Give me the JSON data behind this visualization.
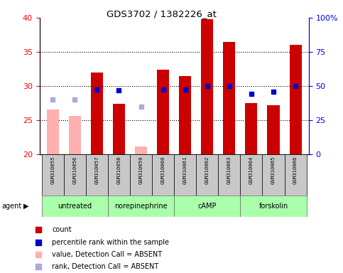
{
  "title": "GDS3702 / 1382226_at",
  "samples": [
    "GSM310055",
    "GSM310056",
    "GSM310057",
    "GSM310058",
    "GSM310059",
    "GSM310060",
    "GSM310061",
    "GSM310062",
    "GSM310063",
    "GSM310064",
    "GSM310065",
    "GSM310066"
  ],
  "bar_values": [
    26.6,
    25.6,
    32.0,
    27.4,
    21.1,
    32.4,
    31.5,
    39.8,
    36.5,
    27.5,
    27.2,
    36.0
  ],
  "bar_absent": [
    true,
    true,
    false,
    false,
    true,
    false,
    false,
    false,
    false,
    false,
    false,
    false
  ],
  "rank_values": [
    28.0,
    28.0,
    29.5,
    29.4,
    27.0,
    29.5,
    29.5,
    30.0,
    30.0,
    28.8,
    29.2,
    30.0
  ],
  "rank_absent": [
    true,
    true,
    false,
    false,
    true,
    false,
    false,
    false,
    false,
    false,
    false,
    false
  ],
  "groups": [
    {
      "label": "untreated",
      "start": 0,
      "end": 3
    },
    {
      "label": "norepinephrine",
      "start": 3,
      "end": 6
    },
    {
      "label": "cAMP",
      "start": 6,
      "end": 9
    },
    {
      "label": "forskolin",
      "start": 9,
      "end": 12
    }
  ],
  "ylim_left": [
    20,
    40
  ],
  "ylim_right": [
    0,
    100
  ],
  "yticks_left": [
    20,
    25,
    30,
    35,
    40
  ],
  "yticks_right": [
    0,
    25,
    50,
    75,
    100
  ],
  "ytick_labels_right": [
    "0",
    "25",
    "50",
    "75",
    "100%"
  ],
  "bar_color_normal": "#CC0000",
  "bar_color_absent": "#FFB0B0",
  "rank_color_normal": "#0000CC",
  "rank_color_absent": "#AAAADD",
  "group_bg_color": "#AAFFAA",
  "sample_bg_color": "#C8C8C8",
  "legend_items": [
    {
      "color": "#CC0000",
      "label": "count"
    },
    {
      "color": "#0000CC",
      "label": "percentile rank within the sample"
    },
    {
      "color": "#FFB0B0",
      "label": "value, Detection Call = ABSENT"
    },
    {
      "color": "#AAAADD",
      "label": "rank, Detection Call = ABSENT"
    }
  ]
}
